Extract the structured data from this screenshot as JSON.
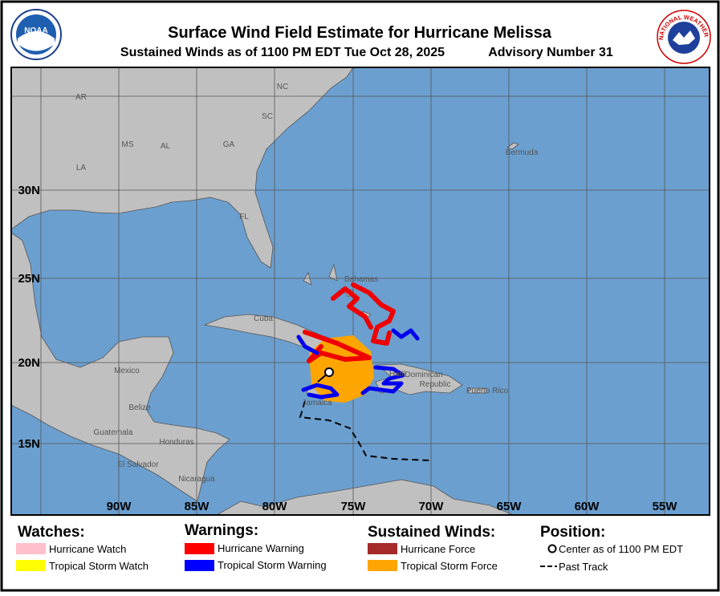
{
  "header": {
    "title": "Surface Wind Field Estimate for Hurricane Melissa",
    "subtitle": "Sustained Winds as of 1100 PM EDT Tue Oct 28, 2025",
    "advisory": "Advisory Number 31",
    "noaa_logo": "NOAA",
    "nws_logo": "NATIONAL WEATHER SERVICE"
  },
  "map": {
    "latitude_labels": [
      "30N",
      "25N",
      "20N",
      "15N"
    ],
    "longitude_labels": [
      "90W",
      "85W",
      "80W",
      "75W",
      "70W",
      "65W",
      "60W",
      "55W"
    ],
    "place_labels": [
      "AR",
      "NC",
      "SC",
      "MS",
      "AL",
      "GA",
      "LA",
      "FL",
      "Bermuda",
      "Bahamas",
      "Cuba",
      "Mexico",
      "Haiti",
      "Dominican",
      "Republic",
      "Puerto Rico",
      "Jamaica",
      "Belize",
      "Guatemala",
      "Honduras",
      "El Salvador",
      "Nicaragua"
    ]
  },
  "legend": {
    "watches": {
      "title": "Watches:",
      "items": [
        "Hurricane Watch",
        "Tropical Storm Watch"
      ]
    },
    "warnings": {
      "title": "Warnings:",
      "items": [
        "Hurricane Warning",
        "Tropical Storm Warning"
      ]
    },
    "sustained_winds": {
      "title": "Sustained Winds:",
      "items": [
        "Hurricane Force",
        "Tropical Storm Force"
      ]
    },
    "position": {
      "title": "Position:",
      "items": [
        "Center as of 1100 PM EDT",
        "Past Track"
      ]
    }
  }
}
